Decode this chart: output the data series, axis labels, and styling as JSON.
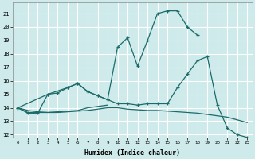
{
  "xlabel": "Humidex (Indice chaleur)",
  "bg_color": "#ceeaea",
  "grid_color": "#ffffff",
  "line_color": "#1c6b6b",
  "xlim": [
    -0.5,
    23.5
  ],
  "ylim": [
    11.8,
    21.8
  ],
  "yticks": [
    12,
    13,
    14,
    15,
    16,
    17,
    18,
    19,
    20,
    21
  ],
  "xticks": [
    0,
    1,
    2,
    3,
    4,
    5,
    6,
    7,
    8,
    9,
    10,
    11,
    12,
    13,
    14,
    15,
    16,
    17,
    18,
    19,
    20,
    21,
    22,
    23
  ],
  "series": [
    {
      "x": [
        0,
        1,
        2,
        3,
        4,
        5,
        6,
        7,
        8,
        9,
        10,
        11,
        12,
        13,
        14,
        15,
        16,
        17,
        18
      ],
      "y": [
        14.0,
        13.6,
        13.6,
        15.0,
        15.1,
        15.5,
        15.8,
        15.2,
        14.9,
        14.6,
        18.5,
        19.2,
        17.1,
        19.0,
        21.0,
        21.2,
        21.2,
        20.0,
        19.4
      ],
      "marker": "+"
    },
    {
      "x": [
        0,
        3,
        5,
        6,
        7,
        8,
        9,
        10,
        11,
        12,
        13,
        14,
        15,
        16,
        17,
        18,
        19,
        20,
        21,
        22,
        23
      ],
      "y": [
        14.0,
        15.0,
        15.5,
        15.8,
        15.2,
        14.9,
        14.6,
        14.3,
        14.3,
        14.2,
        14.3,
        14.3,
        14.3,
        15.5,
        16.5,
        17.5,
        17.8,
        14.2,
        12.5,
        12.0,
        11.8
      ],
      "marker": "+"
    },
    {
      "x": [
        0,
        1,
        2,
        3,
        4,
        5,
        6,
        7,
        8,
        9,
        10,
        11,
        12,
        13,
        14,
        15,
        16,
        17,
        18,
        19,
        20,
        21,
        22,
        23
      ],
      "y": [
        14.0,
        13.8,
        13.7,
        13.65,
        13.65,
        13.7,
        13.75,
        13.8,
        13.9,
        14.0,
        14.0,
        13.9,
        13.85,
        13.8,
        13.8,
        13.75,
        13.7,
        13.65,
        13.6,
        13.5,
        13.4,
        13.3,
        13.1,
        12.9
      ],
      "marker": null
    },
    {
      "x": [
        0,
        1,
        2,
        3,
        4,
        5,
        6,
        7,
        8,
        9
      ],
      "y": [
        14.0,
        13.65,
        13.65,
        13.65,
        13.7,
        13.75,
        13.8,
        14.0,
        14.1,
        14.2
      ],
      "marker": null
    }
  ]
}
